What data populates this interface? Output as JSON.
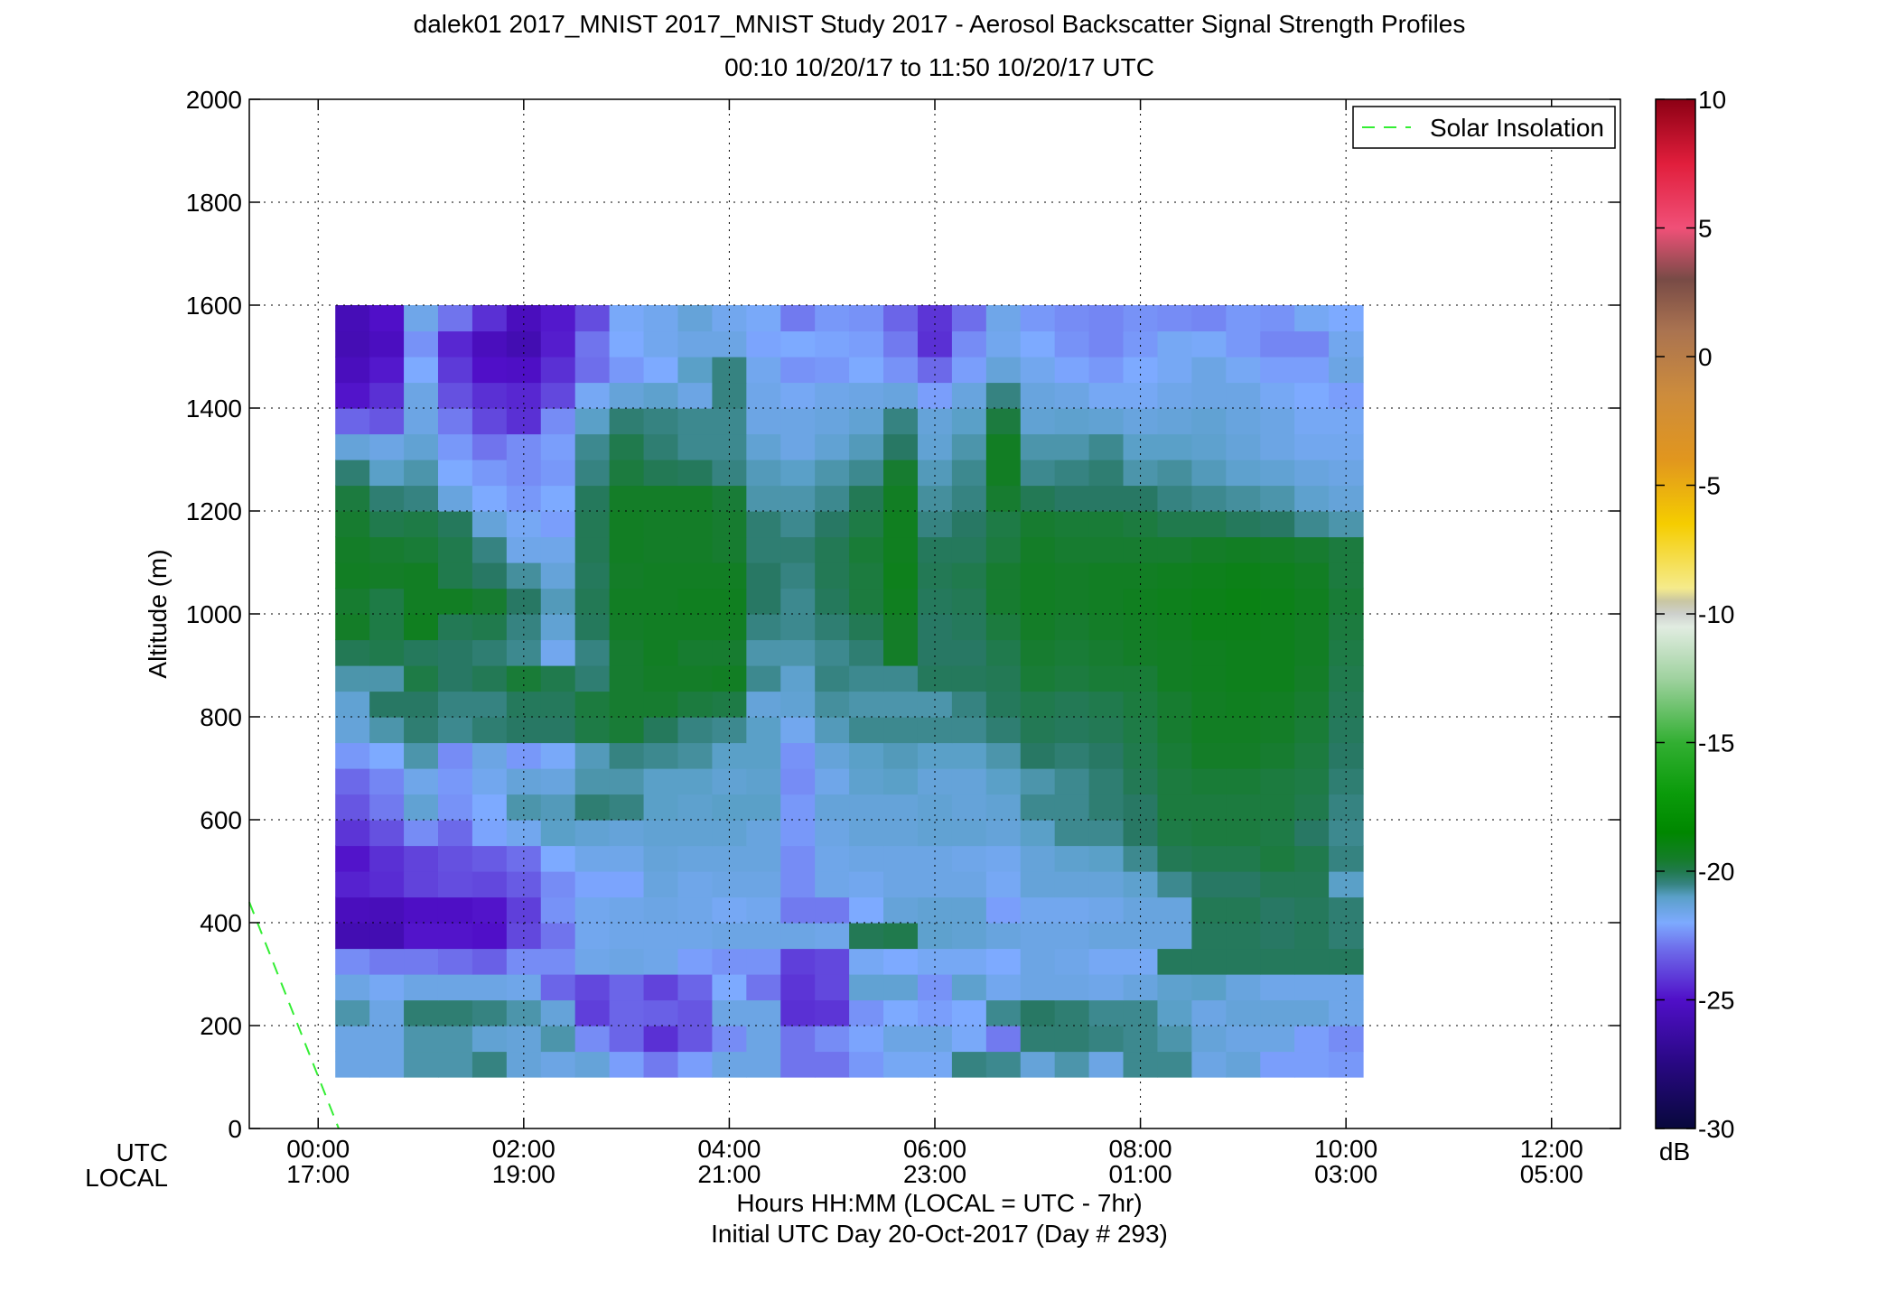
{
  "chart_data": {
    "type": "heatmap",
    "title_line1": "dalek01 2017_MNIST 2017_MNIST Study 2017 - Aerosol Backscatter Signal Strength Profiles",
    "title_line2": "00:10 10/20/17 to 11:50 10/20/17  UTC",
    "ylabel": "Altitude (m)",
    "xlabel_line1": "Hours HH:MM  (LOCAL = UTC - 7hr)",
    "xlabel_line2": "Initial UTC Day 20-Oct-2017 (Day # 293)",
    "utc_label": "UTC",
    "local_label": "LOCAL",
    "x_ticks_utc": [
      "00:00",
      "02:00",
      "04:00",
      "06:00",
      "08:00",
      "10:00",
      "12:00"
    ],
    "x_ticks_local": [
      "17:00",
      "19:00",
      "21:00",
      "23:00",
      "01:00",
      "03:00",
      "05:00"
    ],
    "x_tick_hours": [
      0,
      2,
      4,
      6,
      8,
      10,
      12
    ],
    "xlim_hours": [
      -0.67,
      12.67
    ],
    "y_ticks": [
      0,
      200,
      400,
      600,
      800,
      1000,
      1200,
      1400,
      1600,
      1800,
      2000
    ],
    "ylim": [
      0,
      2000
    ],
    "grid": true,
    "legend": {
      "label": "Solar Insolation",
      "position": "top-right"
    },
    "colorbar": {
      "unit": "dB",
      "ticks": [
        10,
        5,
        0,
        -5,
        -10,
        -15,
        -20,
        -25,
        -30
      ],
      "range": [
        -30,
        10
      ]
    },
    "time_start_hours": 0.1667,
    "time_step_hours": 0.3333,
    "alt_start_m": 100,
    "alt_step_m": 50,
    "solar_line": [
      [
        -0.67,
        440
      ],
      [
        0.2,
        0
      ]
    ],
    "grid_values_db": [
      [
        -21.5,
        -21.5,
        -20.8,
        -20.8,
        -20.5,
        -21.3,
        -21.5,
        -21.3,
        -22.2,
        -22.8,
        -22.2,
        -21.5,
        -21.5,
        -22.9,
        -22.9,
        -22.3,
        -21.8,
        -21.8,
        -20.5,
        -20.6,
        -21.3,
        -20.8,
        -21.5,
        -20.6,
        -20.6,
        -21.5,
        -21.3,
        -22.2,
        -22.2,
        -22.3
      ],
      [
        -21.5,
        -21.5,
        -20.8,
        -20.8,
        -21.2,
        -21.3,
        -20.8,
        -22.5,
        -23.2,
        -24.3,
        -23.5,
        -22.5,
        -21.5,
        -22.9,
        -22.5,
        -22.1,
        -21.5,
        -21.5,
        -21.9,
        -22.8,
        -20.4,
        -20.4,
        -20.5,
        -20.6,
        -20.8,
        -21.3,
        -21.5,
        -21.5,
        -22.2,
        -22.5
      ],
      [
        -20.8,
        -21.5,
        -20.4,
        -20.4,
        -20.5,
        -20.8,
        -21.3,
        -24.0,
        -23.2,
        -23.3,
        -23.5,
        -21.5,
        -21.5,
        -24.3,
        -24.2,
        -22.4,
        -22.0,
        -22.2,
        -22.0,
        -20.6,
        -20.3,
        -20.4,
        -20.6,
        -20.6,
        -21.0,
        -21.5,
        -21.3,
        -21.3,
        -21.3,
        -21.6
      ],
      [
        -21.5,
        -21.8,
        -21.5,
        -21.5,
        -21.5,
        -21.6,
        -23.2,
        -23.8,
        -23.2,
        -23.9,
        -23.2,
        -22.0,
        -22.9,
        -24.2,
        -23.8,
        -21.2,
        -21.2,
        -22.4,
        -21.1,
        -21.7,
        -21.5,
        -21.5,
        -21.6,
        -21.4,
        -21.1,
        -21.0,
        -21.4,
        -21.6,
        -21.6,
        -21.6
      ],
      [
        -22.5,
        -22.8,
        -22.8,
        -23.0,
        -23.3,
        -22.5,
        -22.5,
        -21.6,
        -21.5,
        -21.6,
        -22.2,
        -22.4,
        -22.4,
        -24.0,
        -23.8,
        -21.8,
        -22.0,
        -21.8,
        -21.8,
        -22.0,
        -21.5,
        -21.6,
        -21.8,
        -21.8,
        -20.2,
        -20.2,
        -20.2,
        -20.2,
        -20.2,
        -20.2
      ],
      [
        -25.8,
        -25.8,
        -24.9,
        -24.9,
        -25.0,
        -23.8,
        -22.9,
        -21.7,
        -21.6,
        -21.6,
        -21.6,
        -21.5,
        -21.5,
        -21.5,
        -21.6,
        -20.1,
        -20.0,
        -21.1,
        -21.2,
        -21.4,
        -21.5,
        -21.5,
        -21.4,
        -21.4,
        -21.4,
        -20.2,
        -20.2,
        -20.3,
        -20.2,
        -20.4
      ],
      [
        -25.4,
        -25.5,
        -25.1,
        -25.1,
        -24.9,
        -24.0,
        -22.4,
        -21.7,
        -21.6,
        -21.5,
        -21.6,
        -21.8,
        -21.7,
        -22.8,
        -22.8,
        -22.0,
        -21.3,
        -21.2,
        -21.2,
        -22.2,
        -21.7,
        -21.7,
        -21.6,
        -21.4,
        -21.4,
        -20.1,
        -20.1,
        -20.3,
        -20.2,
        -20.4
      ],
      [
        -24.6,
        -24.4,
        -23.9,
        -23.7,
        -23.8,
        -23.4,
        -22.5,
        -22.1,
        -22.1,
        -21.4,
        -21.6,
        -21.5,
        -21.5,
        -22.5,
        -21.6,
        -21.7,
        -21.5,
        -21.5,
        -21.5,
        -21.8,
        -21.3,
        -21.3,
        -21.3,
        -21.1,
        -20.6,
        -20.3,
        -20.3,
        -20.1,
        -20.1,
        -21.0
      ],
      [
        -24.9,
        -24.3,
        -23.9,
        -23.6,
        -23.4,
        -23.0,
        -22.0,
        -21.6,
        -21.6,
        -21.3,
        -21.4,
        -21.4,
        -21.4,
        -22.5,
        -21.6,
        -21.5,
        -21.5,
        -21.5,
        -21.6,
        -21.7,
        -21.3,
        -21.1,
        -21.0,
        -20.6,
        -20.1,
        -20.0,
        -20.0,
        -19.8,
        -20.0,
        -20.5
      ],
      [
        -24.2,
        -23.6,
        -22.5,
        -23.1,
        -22.1,
        -21.7,
        -21.0,
        -21.2,
        -21.3,
        -21.2,
        -21.2,
        -21.2,
        -21.4,
        -22.3,
        -21.5,
        -21.3,
        -21.3,
        -21.2,
        -21.2,
        -21.3,
        -21.0,
        -20.6,
        -20.6,
        -20.3,
        -19.9,
        -19.8,
        -19.8,
        -19.9,
        -20.3,
        -20.6
      ],
      [
        -23.5,
        -22.8,
        -21.2,
        -22.4,
        -22.0,
        -20.8,
        -20.9,
        -20.4,
        -20.5,
        -21.0,
        -21.1,
        -21.0,
        -21.0,
        -22.3,
        -21.3,
        -21.3,
        -21.3,
        -21.2,
        -21.3,
        -21.2,
        -20.6,
        -20.6,
        -20.4,
        -20.3,
        -19.8,
        -19.8,
        -19.8,
        -19.8,
        -20.0,
        -20.5
      ],
      [
        -23.1,
        -22.6,
        -21.6,
        -22.3,
        -21.7,
        -21.3,
        -21.4,
        -20.8,
        -20.8,
        -21.0,
        -21.0,
        -21.2,
        -21.1,
        -22.5,
        -21.6,
        -21.1,
        -21.0,
        -21.3,
        -21.3,
        -21.0,
        -20.8,
        -20.6,
        -20.4,
        -20.1,
        -19.8,
        -19.7,
        -19.7,
        -19.8,
        -19.9,
        -20.4
      ],
      [
        -22.3,
        -22.0,
        -20.8,
        -22.5,
        -21.5,
        -22.3,
        -21.9,
        -20.9,
        -20.5,
        -20.6,
        -20.7,
        -21.0,
        -21.0,
        -22.4,
        -21.3,
        -21.0,
        -20.9,
        -21.0,
        -21.0,
        -20.8,
        -20.3,
        -20.4,
        -20.3,
        -20.0,
        -19.7,
        -19.5,
        -19.5,
        -19.6,
        -19.8,
        -20.3
      ],
      [
        -21.3,
        -20.8,
        -20.4,
        -20.6,
        -20.4,
        -20.3,
        -20.3,
        -19.9,
        -19.7,
        -20.2,
        -20.5,
        -20.6,
        -21.0,
        -21.7,
        -20.9,
        -20.6,
        -20.6,
        -20.6,
        -20.6,
        -20.4,
        -20.1,
        -20.2,
        -20.1,
        -19.9,
        -19.6,
        -19.4,
        -19.4,
        -19.5,
        -19.7,
        -20.2
      ],
      [
        -21.2,
        -20.3,
        -20.3,
        -20.5,
        -20.5,
        -20.2,
        -20.2,
        -19.8,
        -19.6,
        -19.6,
        -19.8,
        -19.9,
        -21.3,
        -21.2,
        -20.7,
        -20.8,
        -20.8,
        -20.8,
        -20.5,
        -20.2,
        -20.0,
        -20.1,
        -20.0,
        -19.8,
        -19.6,
        -19.4,
        -19.3,
        -19.4,
        -19.6,
        -20.1
      ],
      [
        -20.8,
        -20.8,
        -19.9,
        -20.3,
        -20.1,
        -19.7,
        -20.0,
        -20.4,
        -19.6,
        -19.5,
        -19.5,
        -19.4,
        -20.6,
        -21.1,
        -20.5,
        -20.6,
        -20.6,
        -20.2,
        -20.2,
        -20.1,
        -19.7,
        -19.8,
        -19.7,
        -19.7,
        -19.4,
        -19.3,
        -19.2,
        -19.2,
        -19.5,
        -20.0
      ],
      [
        -20.1,
        -20.0,
        -20.2,
        -20.3,
        -20.4,
        -20.6,
        -21.7,
        -20.5,
        -19.6,
        -19.4,
        -19.6,
        -19.6,
        -20.8,
        -20.8,
        -20.6,
        -20.4,
        -19.5,
        -20.3,
        -20.3,
        -20.0,
        -19.6,
        -19.7,
        -19.6,
        -19.5,
        -19.4,
        -19.3,
        -19.2,
        -19.2,
        -19.4,
        -19.9
      ],
      [
        -19.5,
        -19.9,
        -19.3,
        -20.1,
        -20.0,
        -20.5,
        -21.2,
        -20.2,
        -19.5,
        -19.4,
        -19.4,
        -19.4,
        -20.5,
        -20.6,
        -20.4,
        -20.1,
        -19.5,
        -20.3,
        -20.2,
        -19.8,
        -19.5,
        -19.6,
        -19.5,
        -19.4,
        -19.3,
        -19.1,
        -19.1,
        -19.2,
        -19.4,
        -19.8
      ],
      [
        -19.6,
        -19.9,
        -19.4,
        -19.4,
        -19.6,
        -20.3,
        -20.9,
        -20.1,
        -19.4,
        -19.4,
        -19.3,
        -19.3,
        -20.3,
        -20.6,
        -20.2,
        -19.8,
        -19.3,
        -20.2,
        -20.1,
        -19.6,
        -19.4,
        -19.5,
        -19.4,
        -19.3,
        -19.2,
        -19.1,
        -19.0,
        -19.1,
        -19.3,
        -19.7
      ],
      [
        -19.4,
        -19.5,
        -19.4,
        -20.0,
        -20.3,
        -20.7,
        -21.3,
        -20.2,
        -19.5,
        -19.4,
        -19.4,
        -19.4,
        -20.3,
        -20.5,
        -20.1,
        -19.8,
        -19.2,
        -20.1,
        -20.0,
        -19.6,
        -19.4,
        -19.5,
        -19.4,
        -19.4,
        -19.3,
        -19.2,
        -19.1,
        -19.2,
        -19.4,
        -19.8
      ],
      [
        -19.5,
        -19.6,
        -19.7,
        -20.0,
        -20.5,
        -21.6,
        -21.6,
        -20.1,
        -19.4,
        -19.5,
        -19.5,
        -19.6,
        -20.4,
        -20.4,
        -20.1,
        -19.7,
        -19.3,
        -20.2,
        -20.2,
        -19.8,
        -19.5,
        -19.6,
        -19.6,
        -19.6,
        -19.6,
        -19.5,
        -19.4,
        -19.5,
        -19.6,
        -19.8
      ],
      [
        -19.6,
        -20.0,
        -19.9,
        -20.2,
        -21.3,
        -21.8,
        -22.2,
        -20.1,
        -19.4,
        -19.5,
        -19.5,
        -19.6,
        -20.4,
        -20.6,
        -20.3,
        -19.9,
        -19.3,
        -20.5,
        -20.3,
        -19.9,
        -19.6,
        -19.7,
        -19.7,
        -19.8,
        -20.0,
        -20.0,
        -20.2,
        -20.3,
        -20.6,
        -20.8
      ],
      [
        -19.8,
        -20.4,
        -20.5,
        -21.4,
        -22.0,
        -22.3,
        -22.0,
        -20.2,
        -19.5,
        -19.5,
        -19.5,
        -19.7,
        -20.8,
        -20.8,
        -20.6,
        -20.1,
        -19.4,
        -20.7,
        -20.5,
        -19.6,
        -20.1,
        -20.3,
        -20.3,
        -20.3,
        -20.5,
        -20.6,
        -20.7,
        -20.8,
        -21.1,
        -21.3
      ],
      [
        -20.4,
        -21.0,
        -20.8,
        -22.0,
        -22.3,
        -22.5,
        -22.3,
        -20.5,
        -19.8,
        -20.1,
        -20.2,
        -20.5,
        -20.9,
        -21.0,
        -20.8,
        -20.6,
        -19.6,
        -20.9,
        -20.6,
        -19.4,
        -20.6,
        -20.5,
        -20.4,
        -20.8,
        -20.7,
        -20.9,
        -21.1,
        -21.2,
        -21.4,
        -21.5
      ],
      [
        -21.3,
        -21.5,
        -21.2,
        -22.3,
        -22.9,
        -22.5,
        -22.2,
        -20.6,
        -20.0,
        -20.4,
        -20.6,
        -20.6,
        -21.2,
        -21.5,
        -21.2,
        -20.9,
        -20.3,
        -21.2,
        -20.8,
        -19.4,
        -20.8,
        -20.8,
        -20.6,
        -21.0,
        -21.0,
        -21.1,
        -21.3,
        -21.5,
        -21.7,
        -21.7
      ],
      [
        -23.2,
        -23.5,
        -21.5,
        -22.8,
        -23.8,
        -24.3,
        -22.5,
        -21.0,
        -20.4,
        -20.5,
        -20.6,
        -20.6,
        -21.5,
        -21.5,
        -21.4,
        -21.2,
        -20.5,
        -21.3,
        -21.0,
        -19.8,
        -21.2,
        -21.1,
        -21.2,
        -21.4,
        -21.3,
        -21.2,
        -21.4,
        -21.5,
        -21.8,
        -21.8
      ],
      [
        -24.9,
        -24.3,
        -21.5,
        -23.6,
        -24.3,
        -24.5,
        -23.8,
        -21.8,
        -21.3,
        -21.1,
        -21.5,
        -20.5,
        -21.6,
        -21.8,
        -21.6,
        -21.5,
        -21.4,
        -22.2,
        -21.4,
        -20.5,
        -21.4,
        -21.5,
        -21.8,
        -21.8,
        -21.6,
        -21.5,
        -21.5,
        -21.8,
        -22.0,
        -22.2
      ],
      [
        -25.4,
        -24.8,
        -22.0,
        -24.1,
        -25.0,
        -25.1,
        -24.3,
        -23.0,
        -22.3,
        -22.0,
        -21.0,
        -20.5,
        -21.7,
        -22.4,
        -22.3,
        -22.0,
        -22.4,
        -23.1,
        -22.2,
        -21.3,
        -21.7,
        -22.1,
        -22.3,
        -22.0,
        -21.8,
        -21.5,
        -21.8,
        -22.2,
        -22.2,
        -21.5
      ],
      [
        -25.7,
        -25.3,
        -22.4,
        -24.5,
        -25.4,
        -25.8,
        -24.7,
        -22.9,
        -22.0,
        -21.7,
        -21.5,
        -21.5,
        -22.1,
        -22.0,
        -22.1,
        -22.2,
        -22.8,
        -24.3,
        -22.5,
        -21.7,
        -22.0,
        -22.4,
        -22.6,
        -22.3,
        -21.8,
        -21.9,
        -22.3,
        -22.6,
        -22.6,
        -21.7
      ],
      [
        -25.6,
        -25.0,
        -21.6,
        -22.9,
        -24.3,
        -25.4,
        -24.8,
        -23.7,
        -21.9,
        -21.7,
        -21.3,
        -21.7,
        -21.9,
        -22.8,
        -22.3,
        -22.4,
        -23.2,
        -24.2,
        -23.0,
        -21.6,
        -22.3,
        -22.5,
        -22.6,
        -22.4,
        -22.5,
        -22.6,
        -22.3,
        -22.4,
        -21.8,
        -22.0
      ]
    ]
  }
}
